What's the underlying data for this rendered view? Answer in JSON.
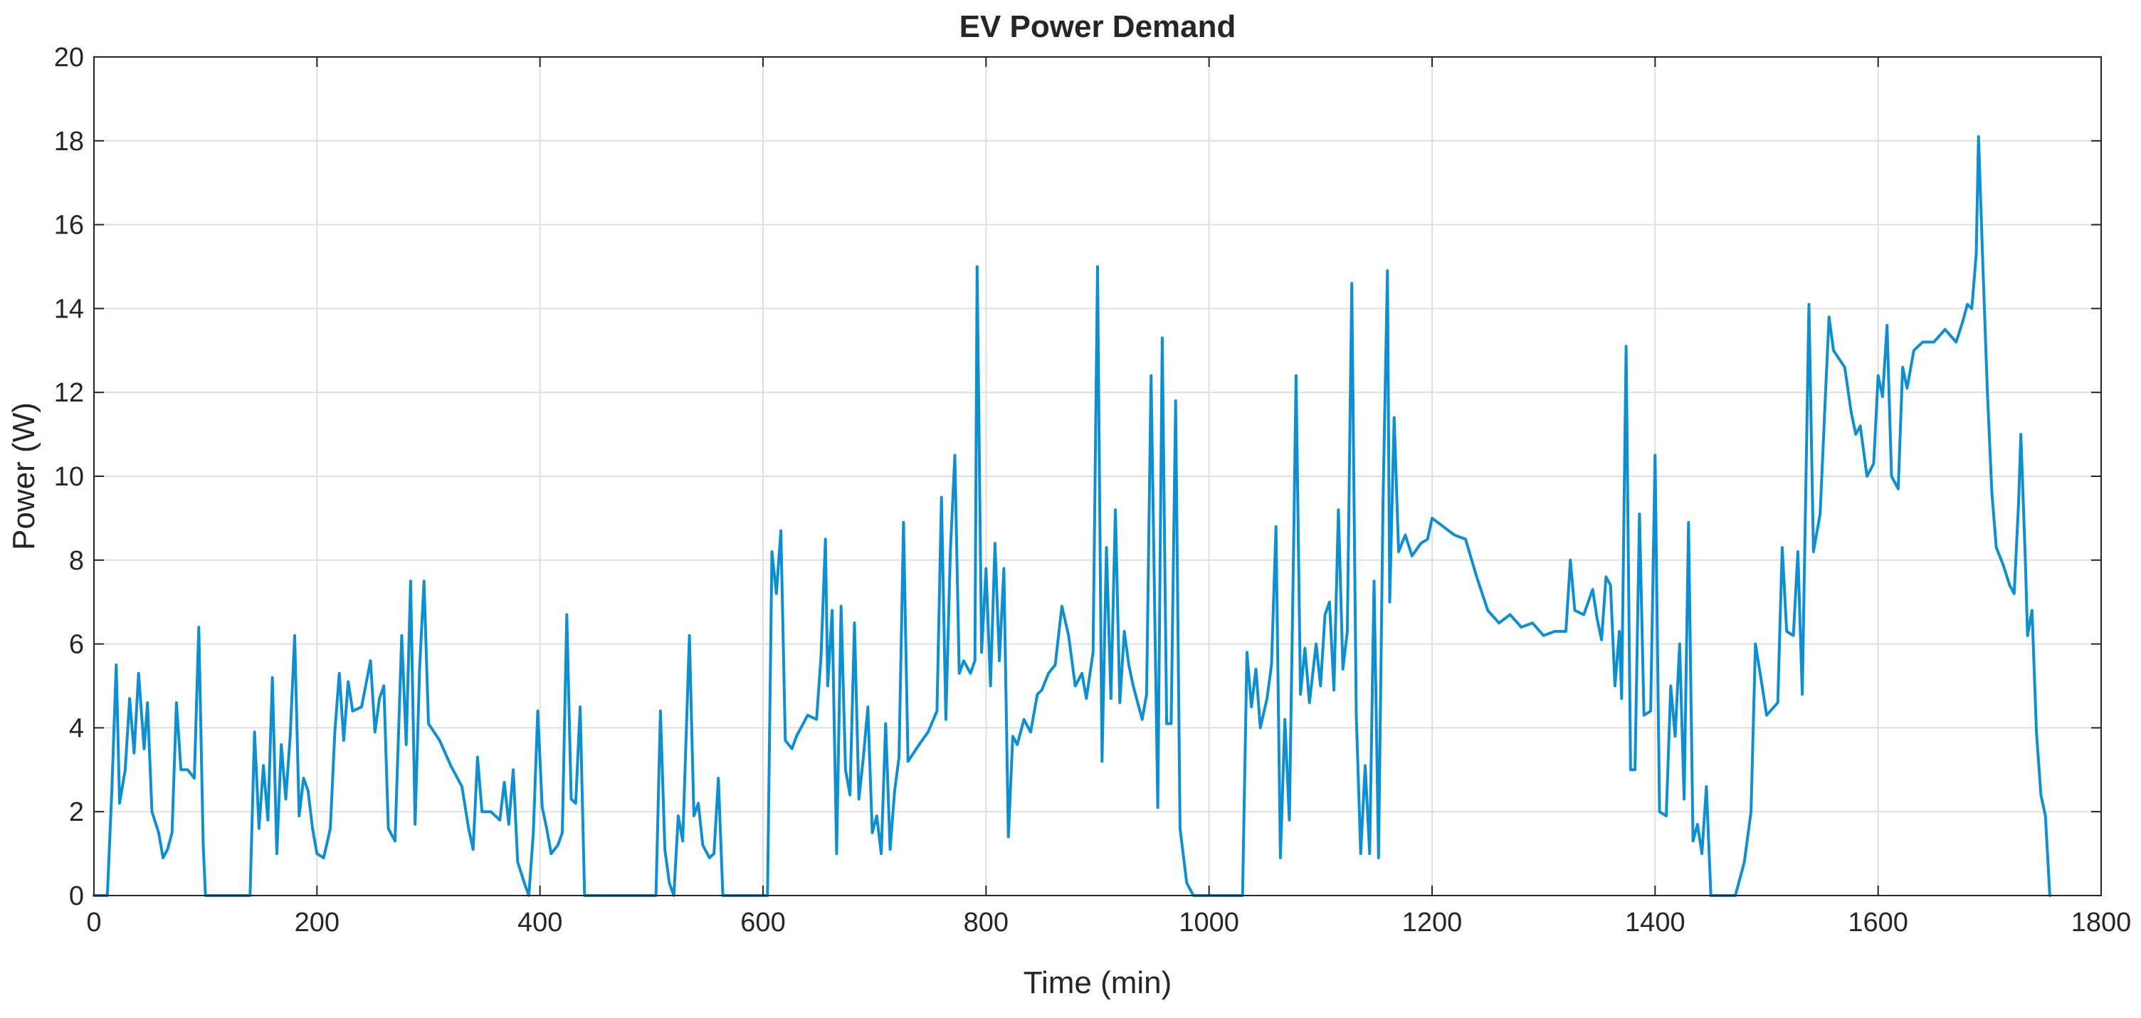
{
  "chart_data": {
    "type": "line",
    "title": "EV Power Demand",
    "xlabel": "Time (min)",
    "ylabel": "Power (W)",
    "xlim": [
      0,
      1800
    ],
    "ylim": [
      0,
      20
    ],
    "xticks": [
      0,
      200,
      400,
      600,
      800,
      1000,
      1200,
      1400,
      1600,
      1800
    ],
    "yticks": [
      0,
      2,
      4,
      6,
      8,
      10,
      12,
      14,
      16,
      18,
      20
    ],
    "grid": true,
    "line_color": "#0e8fd2",
    "series": [
      {
        "points": [
          [
            0,
            0
          ],
          [
            12,
            0
          ],
          [
            16,
            2.5
          ],
          [
            20,
            5.5
          ],
          [
            23,
            2.2
          ],
          [
            28,
            3.0
          ],
          [
            32,
            4.7
          ],
          [
            36,
            3.4
          ],
          [
            40,
            5.3
          ],
          [
            45,
            3.5
          ],
          [
            48,
            4.6
          ],
          [
            52,
            2.0
          ],
          [
            58,
            1.5
          ],
          [
            62,
            0.9
          ],
          [
            66,
            1.1
          ],
          [
            70,
            1.5
          ],
          [
            74,
            4.6
          ],
          [
            78,
            3.0
          ],
          [
            84,
            3.0
          ],
          [
            90,
            2.8
          ],
          [
            94,
            6.4
          ],
          [
            98,
            1.2
          ],
          [
            100,
            0
          ],
          [
            140,
            0
          ],
          [
            144,
            3.9
          ],
          [
            148,
            1.6
          ],
          [
            152,
            3.1
          ],
          [
            156,
            1.8
          ],
          [
            160,
            5.2
          ],
          [
            164,
            1.0
          ],
          [
            168,
            3.6
          ],
          [
            172,
            2.3
          ],
          [
            176,
            3.8
          ],
          [
            180,
            6.2
          ],
          [
            184,
            1.9
          ],
          [
            188,
            2.8
          ],
          [
            192,
            2.5
          ],
          [
            196,
            1.6
          ],
          [
            200,
            1.0
          ],
          [
            206,
            0.9
          ],
          [
            212,
            1.6
          ],
          [
            216,
            3.9
          ],
          [
            220,
            5.3
          ],
          [
            224,
            3.7
          ],
          [
            228,
            5.1
          ],
          [
            232,
            4.4
          ],
          [
            240,
            4.5
          ],
          [
            248,
            5.6
          ],
          [
            252,
            3.9
          ],
          [
            256,
            4.7
          ],
          [
            260,
            5.0
          ],
          [
            264,
            1.6
          ],
          [
            270,
            1.3
          ],
          [
            276,
            6.2
          ],
          [
            280,
            3.6
          ],
          [
            284,
            7.5
          ],
          [
            288,
            1.7
          ],
          [
            292,
            5.4
          ],
          [
            296,
            7.5
          ],
          [
            300,
            4.1
          ],
          [
            310,
            3.7
          ],
          [
            320,
            3.1
          ],
          [
            330,
            2.6
          ],
          [
            336,
            1.6
          ],
          [
            340,
            1.1
          ],
          [
            344,
            3.3
          ],
          [
            348,
            2.0
          ],
          [
            356,
            2.0
          ],
          [
            364,
            1.8
          ],
          [
            368,
            2.7
          ],
          [
            372,
            1.7
          ],
          [
            376,
            3.0
          ],
          [
            380,
            0.8
          ],
          [
            386,
            0.3
          ],
          [
            390,
            0
          ],
          [
            394,
            1.5
          ],
          [
            398,
            4.4
          ],
          [
            402,
            2.1
          ],
          [
            406,
            1.6
          ],
          [
            410,
            1.0
          ],
          [
            416,
            1.2
          ],
          [
            420,
            1.5
          ],
          [
            424,
            6.7
          ],
          [
            428,
            2.3
          ],
          [
            432,
            2.2
          ],
          [
            436,
            4.5
          ],
          [
            440,
            0
          ],
          [
            504,
            0
          ],
          [
            508,
            4.4
          ],
          [
            512,
            1.1
          ],
          [
            516,
            0.3
          ],
          [
            520,
            0
          ],
          [
            524,
            1.9
          ],
          [
            528,
            1.3
          ],
          [
            534,
            6.2
          ],
          [
            538,
            1.9
          ],
          [
            542,
            2.2
          ],
          [
            546,
            1.2
          ],
          [
            552,
            0.9
          ],
          [
            556,
            1.0
          ],
          [
            560,
            2.8
          ],
          [
            564,
            0
          ],
          [
            604,
            0
          ],
          [
            608,
            8.2
          ],
          [
            612,
            7.2
          ],
          [
            616,
            8.7
          ],
          [
            620,
            3.7
          ],
          [
            626,
            3.5
          ],
          [
            630,
            3.8
          ],
          [
            640,
            4.3
          ],
          [
            648,
            4.2
          ],
          [
            652,
            5.7
          ],
          [
            656,
            8.5
          ],
          [
            658,
            5.0
          ],
          [
            662,
            6.8
          ],
          [
            666,
            1.0
          ],
          [
            670,
            6.9
          ],
          [
            674,
            3.0
          ],
          [
            678,
            2.4
          ],
          [
            682,
            6.5
          ],
          [
            686,
            2.3
          ],
          [
            690,
            3.3
          ],
          [
            694,
            4.5
          ],
          [
            698,
            1.5
          ],
          [
            702,
            1.9
          ],
          [
            706,
            1.0
          ],
          [
            710,
            4.1
          ],
          [
            714,
            1.1
          ],
          [
            718,
            2.5
          ],
          [
            722,
            3.3
          ],
          [
            726,
            8.9
          ],
          [
            730,
            3.2
          ],
          [
            740,
            3.6
          ],
          [
            748,
            3.9
          ],
          [
            756,
            4.4
          ],
          [
            760,
            9.5
          ],
          [
            764,
            4.2
          ],
          [
            768,
            8.2
          ],
          [
            772,
            10.5
          ],
          [
            776,
            5.3
          ],
          [
            780,
            5.6
          ],
          [
            786,
            5.3
          ],
          [
            790,
            5.6
          ],
          [
            792,
            15.0
          ],
          [
            796,
            5.8
          ],
          [
            800,
            7.8
          ],
          [
            804,
            5.0
          ],
          [
            808,
            8.4
          ],
          [
            812,
            5.6
          ],
          [
            816,
            7.8
          ],
          [
            820,
            1.4
          ],
          [
            824,
            3.8
          ],
          [
            828,
            3.6
          ],
          [
            834,
            4.2
          ],
          [
            840,
            3.9
          ],
          [
            846,
            4.8
          ],
          [
            850,
            4.9
          ],
          [
            856,
            5.3
          ],
          [
            862,
            5.5
          ],
          [
            868,
            6.9
          ],
          [
            874,
            6.2
          ],
          [
            880,
            5.0
          ],
          [
            886,
            5.3
          ],
          [
            890,
            4.7
          ],
          [
            896,
            5.8
          ],
          [
            900,
            15.0
          ],
          [
            904,
            3.2
          ],
          [
            908,
            8.3
          ],
          [
            912,
            4.7
          ],
          [
            916,
            9.2
          ],
          [
            920,
            4.6
          ],
          [
            924,
            6.3
          ],
          [
            928,
            5.5
          ],
          [
            932,
            5.0
          ],
          [
            936,
            4.6
          ],
          [
            940,
            4.2
          ],
          [
            944,
            4.8
          ],
          [
            948,
            12.4
          ],
          [
            952,
            5.5
          ],
          [
            954,
            2.1
          ],
          [
            958,
            13.3
          ],
          [
            962,
            4.1
          ],
          [
            966,
            4.1
          ],
          [
            970,
            11.8
          ],
          [
            974,
            1.6
          ],
          [
            980,
            0.3
          ],
          [
            986,
            0
          ],
          [
            1030,
            0
          ],
          [
            1034,
            5.8
          ],
          [
            1038,
            4.5
          ],
          [
            1042,
            5.4
          ],
          [
            1046,
            4.0
          ],
          [
            1052,
            4.7
          ],
          [
            1056,
            5.5
          ],
          [
            1060,
            8.8
          ],
          [
            1064,
            0.9
          ],
          [
            1068,
            4.2
          ],
          [
            1072,
            1.8
          ],
          [
            1076,
            8.6
          ],
          [
            1078,
            12.4
          ],
          [
            1082,
            4.8
          ],
          [
            1086,
            5.9
          ],
          [
            1090,
            4.6
          ],
          [
            1096,
            6.0
          ],
          [
            1100,
            5.0
          ],
          [
            1104,
            6.7
          ],
          [
            1108,
            7.0
          ],
          [
            1112,
            4.9
          ],
          [
            1116,
            9.2
          ],
          [
            1120,
            5.4
          ],
          [
            1124,
            6.3
          ],
          [
            1128,
            14.6
          ],
          [
            1132,
            4.3
          ],
          [
            1136,
            1.0
          ],
          [
            1140,
            3.1
          ],
          [
            1144,
            1.0
          ],
          [
            1148,
            7.5
          ],
          [
            1152,
            0.9
          ],
          [
            1156,
            9.4
          ],
          [
            1160,
            14.9
          ],
          [
            1162,
            7.0
          ],
          [
            1166,
            11.4
          ],
          [
            1170,
            8.2
          ],
          [
            1176,
            8.6
          ],
          [
            1182,
            8.1
          ],
          [
            1190,
            8.4
          ],
          [
            1196,
            8.5
          ],
          [
            1200,
            9.0
          ],
          [
            1210,
            8.8
          ],
          [
            1220,
            8.6
          ],
          [
            1230,
            8.5
          ],
          [
            1240,
            7.6
          ],
          [
            1250,
            6.8
          ],
          [
            1260,
            6.5
          ],
          [
            1270,
            6.7
          ],
          [
            1280,
            6.4
          ],
          [
            1290,
            6.5
          ],
          [
            1300,
            6.2
          ],
          [
            1310,
            6.3
          ],
          [
            1320,
            6.3
          ],
          [
            1324,
            8.0
          ],
          [
            1328,
            6.8
          ],
          [
            1336,
            6.7
          ],
          [
            1344,
            7.3
          ],
          [
            1348,
            6.6
          ],
          [
            1352,
            6.1
          ],
          [
            1356,
            7.6
          ],
          [
            1360,
            7.4
          ],
          [
            1364,
            5.0
          ],
          [
            1368,
            6.3
          ],
          [
            1370,
            4.7
          ],
          [
            1374,
            13.1
          ],
          [
            1378,
            3.0
          ],
          [
            1382,
            3.0
          ],
          [
            1386,
            9.1
          ],
          [
            1390,
            4.3
          ],
          [
            1396,
            4.4
          ],
          [
            1400,
            10.5
          ],
          [
            1404,
            2.0
          ],
          [
            1410,
            1.9
          ],
          [
            1414,
            5.0
          ],
          [
            1418,
            3.8
          ],
          [
            1422,
            6.0
          ],
          [
            1426,
            2.3
          ],
          [
            1430,
            8.9
          ],
          [
            1434,
            1.3
          ],
          [
            1438,
            1.7
          ],
          [
            1442,
            1.0
          ],
          [
            1446,
            2.6
          ],
          [
            1450,
            0
          ],
          [
            1472,
            0
          ],
          [
            1480,
            0.8
          ],
          [
            1486,
            2.0
          ],
          [
            1490,
            6.0
          ],
          [
            1496,
            5.0
          ],
          [
            1500,
            4.3
          ],
          [
            1510,
            4.6
          ],
          [
            1514,
            8.3
          ],
          [
            1518,
            6.3
          ],
          [
            1524,
            6.2
          ],
          [
            1528,
            8.2
          ],
          [
            1532,
            4.8
          ],
          [
            1538,
            14.1
          ],
          [
            1542,
            8.2
          ],
          [
            1548,
            9.1
          ],
          [
            1552,
            11.5
          ],
          [
            1556,
            13.8
          ],
          [
            1560,
            13.0
          ],
          [
            1570,
            12.6
          ],
          [
            1576,
            11.5
          ],
          [
            1580,
            11.0
          ],
          [
            1584,
            11.2
          ],
          [
            1590,
            10.0
          ],
          [
            1596,
            10.3
          ],
          [
            1600,
            12.4
          ],
          [
            1604,
            11.9
          ],
          [
            1608,
            13.6
          ],
          [
            1612,
            10.0
          ],
          [
            1618,
            9.7
          ],
          [
            1622,
            12.6
          ],
          [
            1626,
            12.1
          ],
          [
            1632,
            13.0
          ],
          [
            1640,
            13.2
          ],
          [
            1650,
            13.2
          ],
          [
            1660,
            13.5
          ],
          [
            1670,
            13.2
          ],
          [
            1676,
            13.7
          ],
          [
            1680,
            14.1
          ],
          [
            1684,
            14.0
          ],
          [
            1688,
            15.3
          ],
          [
            1690,
            18.1
          ],
          [
            1694,
            15.0
          ],
          [
            1698,
            12.0
          ],
          [
            1702,
            9.6
          ],
          [
            1706,
            8.3
          ],
          [
            1712,
            7.9
          ],
          [
            1718,
            7.4
          ],
          [
            1722,
            7.2
          ],
          [
            1726,
            9.4
          ],
          [
            1728,
            11.0
          ],
          [
            1732,
            8.0
          ],
          [
            1734,
            6.2
          ],
          [
            1738,
            6.8
          ],
          [
            1742,
            3.9
          ],
          [
            1746,
            2.4
          ],
          [
            1750,
            1.9
          ],
          [
            1754,
            0
          ]
        ]
      }
    ]
  }
}
